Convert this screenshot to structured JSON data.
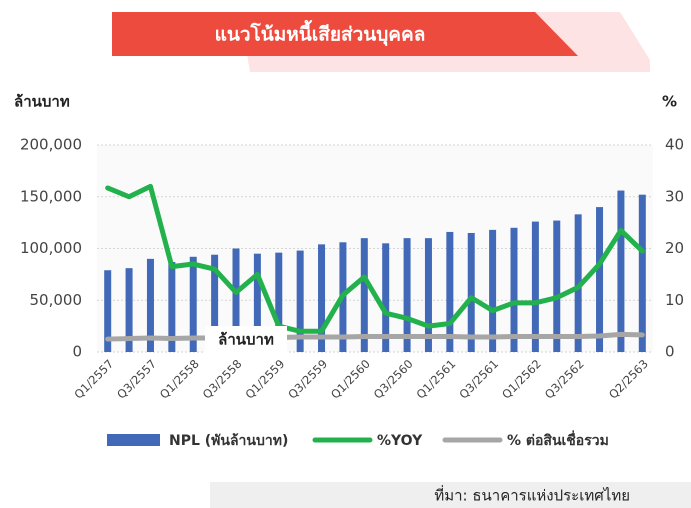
{
  "chart_data": {
    "type": "bar-line",
    "title": "แนวโน้มหนี้เสียส่วนบุคคล",
    "y_label": "ล้านบาท",
    "y2_label": "%",
    "annotation": "ล้านบาท",
    "source": "ที่มา: ธนาคารแห่งประเทศไทย",
    "categories": [
      "Q1/2557",
      null,
      "Q3/2557",
      null,
      "Q1/2558",
      null,
      "Q3/2558",
      null,
      "Q1/2559",
      null,
      "Q3/2559",
      null,
      "Q1/2560",
      null,
      "Q3/2560",
      null,
      "Q1/2561",
      null,
      "Q3/2561",
      null,
      "Q1/2562",
      null,
      "Q3/2562",
      null,
      null,
      "Q2/2563"
    ],
    "series": [
      {
        "name": "NPL (พันล้านบาท)",
        "type": "bar",
        "color": "#4169b8",
        "axis": "y",
        "values": [
          79000,
          81000,
          90000,
          87000,
          92000,
          94000,
          100000,
          95000,
          96000,
          98000,
          104000,
          106000,
          110000,
          105000,
          110000,
          110000,
          116000,
          115000,
          118000,
          120000,
          126000,
          127000,
          133000,
          140000,
          156000,
          152000
        ]
      },
      {
        "name": "%YOY",
        "type": "line",
        "color": "#22b14c",
        "axis": "y2",
        "values": [
          31.7,
          30,
          32,
          16.5,
          17,
          16,
          11.5,
          15,
          5,
          4,
          4,
          11,
          14.5,
          7.5,
          6.5,
          5,
          5.5,
          10.5,
          8,
          9.5,
          9.5,
          10.5,
          12.5,
          17,
          23.5,
          19.5
        ]
      },
      {
        "name": "% ต่อสินเชื่อรวม",
        "type": "line",
        "color": "#a6a6a6",
        "axis": "y2",
        "values": [
          2.5,
          2.6,
          2.7,
          2.6,
          2.7,
          2.7,
          2.8,
          2.8,
          2.8,
          2.9,
          2.9,
          2.9,
          3.0,
          3.0,
          3.0,
          3.0,
          3.0,
          2.9,
          2.9,
          3.0,
          3.0,
          3.0,
          3.0,
          3.1,
          3.4,
          3.3
        ]
      }
    ],
    "ylim": [
      0,
      200000
    ],
    "yticks": [
      0,
      {
        "value": 50000,
        "label": "50,000"
      },
      {
        "value": 100000,
        "label": "100,000"
      },
      {
        "value": 150000,
        "label": "150,000"
      },
      {
        "value": 200000,
        "label": "200,000"
      }
    ],
    "y2lim": [
      0,
      40
    ],
    "y2ticks": [
      0,
      10,
      20,
      30,
      40
    ],
    "grid": true
  }
}
